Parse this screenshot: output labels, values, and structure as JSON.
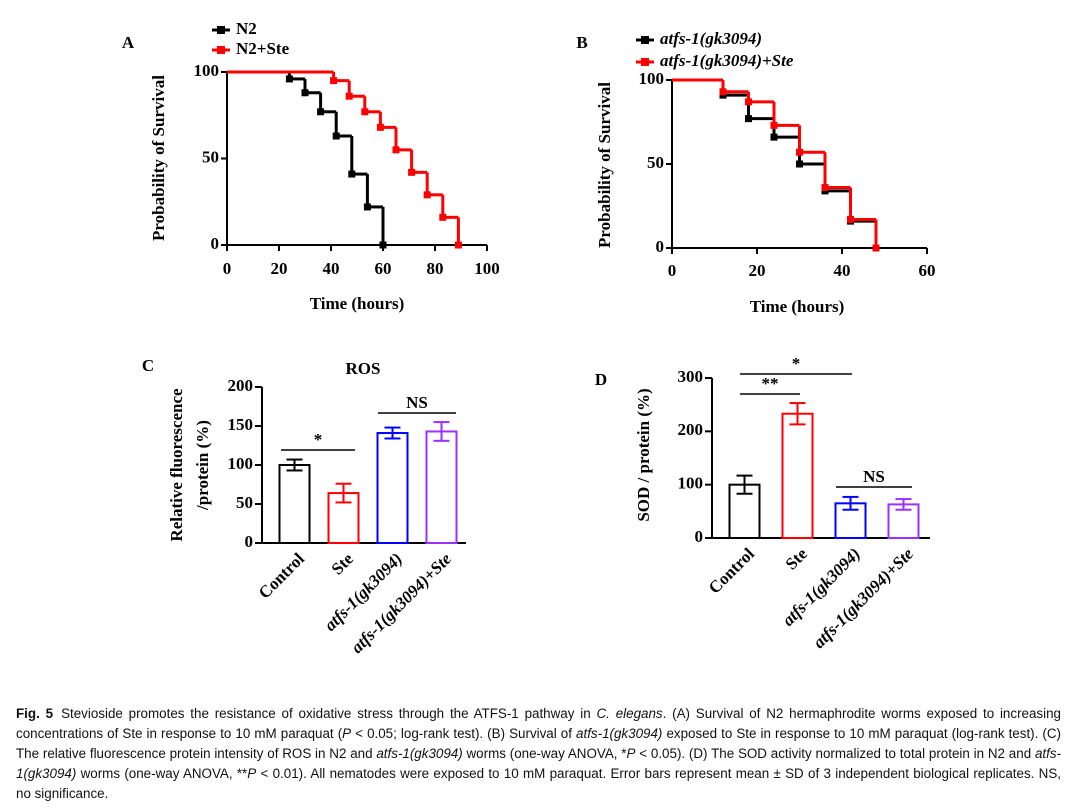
{
  "chart_data": [
    {
      "type": "step",
      "label": "A",
      "xlabel": "Time (hours)",
      "ylabel": "Probability of Survival",
      "xlim": [
        0,
        100
      ],
      "xticks": [
        0,
        20,
        40,
        60,
        80,
        100
      ],
      "ylim": [
        0,
        100
      ],
      "yticks": [
        0,
        50,
        100
      ],
      "legend": "upper left",
      "series": [
        {
          "name": "N2",
          "color": "#000000",
          "x": [
            0,
            24,
            30,
            36,
            42,
            48,
            54,
            60
          ],
          "values": [
            100,
            96,
            88,
            77,
            63,
            41,
            22,
            0
          ]
        },
        {
          "name": "N2+Ste",
          "color": "#ff0000",
          "x": [
            0,
            41,
            47,
            53,
            59,
            65,
            71,
            77,
            83,
            89
          ],
          "values": [
            100,
            95,
            86,
            77,
            68,
            55,
            42,
            29,
            16,
            0
          ]
        }
      ]
    },
    {
      "type": "step",
      "label": "B",
      "xlabel": "Time (hours)",
      "ylabel": "Probability of Survival",
      "xlim": [
        0,
        60
      ],
      "xticks": [
        0,
        20,
        40,
        60
      ],
      "ylim": [
        0,
        100
      ],
      "yticks": [
        0,
        50,
        100
      ],
      "legend": "upper left",
      "series": [
        {
          "name": "atfs-1(gk3094)",
          "color": "#000000",
          "x": [
            0,
            12,
            18,
            24,
            30,
            36,
            42,
            48
          ],
          "values": [
            100,
            91,
            77,
            66,
            50,
            34,
            16,
            0
          ]
        },
        {
          "name": "atfs-1(gk3094)+Ste",
          "color": "#ff0000",
          "x": [
            0,
            12,
            18,
            24,
            30,
            36,
            42,
            48
          ],
          "values": [
            100,
            93,
            87,
            73,
            57,
            36,
            17,
            0
          ]
        }
      ]
    },
    {
      "type": "bar",
      "label": "C",
      "title": "ROS",
      "ylabel": [
        "Relative fluorescence",
        "/protein (%)"
      ],
      "categories": [
        "Control",
        "Ste",
        "atfs-1(gk3094)",
        "atfs-1(gk3094)+Ste"
      ],
      "values": [
        100,
        64,
        141,
        143
      ],
      "errors": [
        7,
        12,
        7,
        12
      ],
      "colors": [
        "#000000",
        "#ff0000",
        "#0000ff",
        "#9b30ff"
      ],
      "ylim": [
        0,
        200
      ],
      "yticks": [
        0,
        50,
        100,
        150,
        200
      ],
      "annotations": [
        "*",
        "NS"
      ]
    },
    {
      "type": "bar",
      "label": "D",
      "ylabel": [
        "SOD / protein (%)"
      ],
      "categories": [
        "Control",
        "Ste",
        "atfs-1(gk3094)",
        "atfs-1(gk3094)+Ste"
      ],
      "values": [
        100,
        233,
        65,
        63
      ],
      "errors": [
        17,
        20,
        12,
        10
      ],
      "colors": [
        "#000000",
        "#ff0000",
        "#0000ff",
        "#9b30ff"
      ],
      "ylim": [
        0,
        300
      ],
      "yticks": [
        0,
        100,
        200,
        300
      ],
      "annotations": [
        "*",
        "**",
        "NS"
      ]
    }
  ],
  "caption_label": "Fig. 5",
  "caption": [
    {
      "text": "Stevioside promotes the resistance of oxidative stress through the ATFS-1 pathway in "
    },
    {
      "text": "C. elegans",
      "italic": true
    },
    {
      "text": ". (A) Survival of N2 hermaphrodite worms exposed to increasing concentrations of Ste in response to 10 mM paraquat ("
    },
    {
      "text": "P",
      "italic": true
    },
    {
      "text": " < 0.05; log-rank test). (B) Survival of "
    },
    {
      "text": "atfs-1(gk3094)",
      "italic": true
    },
    {
      "text": " exposed to Ste in response to 10 mM paraquat (log-rank test). (C) The relative fluorescence protein intensity of ROS in N2 and "
    },
    {
      "text": "atfs-1(gk3094)",
      "italic": true
    },
    {
      "text": " worms (one-way ANOVA, *"
    },
    {
      "text": "P",
      "italic": true
    },
    {
      "text": " < 0.05). (D) The SOD activity normalized to total protein in N2 and "
    },
    {
      "text": "atfs-1(gk3094)",
      "italic": true
    },
    {
      "text": " worms (one-way ANOVA, **"
    },
    {
      "text": "P",
      "italic": true
    },
    {
      "text": " < 0.01). All nematodes were exposed to 10 mM paraquat. Error bars represent mean ± SD of 3 independent biological replicates. NS, no significance."
    }
  ]
}
